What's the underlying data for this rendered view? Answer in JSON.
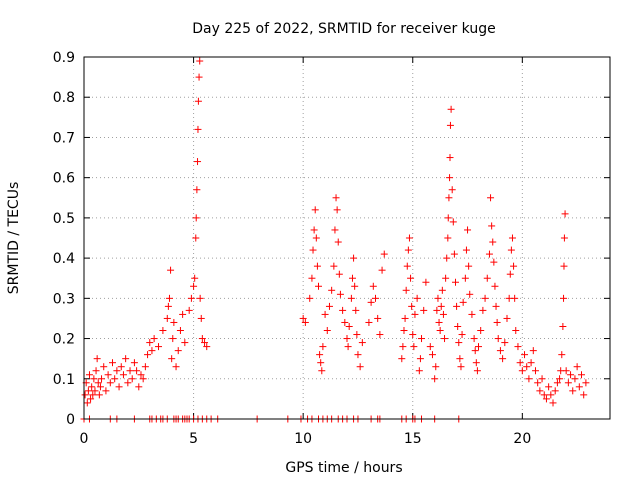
{
  "chart_data": {
    "type": "scatter",
    "title": "Day 225 of 2022, SRMTID for receiver kuge",
    "xlabel": "GPS time / hours",
    "ylabel": "SRMTID / TECUs",
    "xlim": [
      0,
      24
    ],
    "ylim": [
      0,
      0.9
    ],
    "xticks": [
      0,
      5,
      10,
      15,
      20
    ],
    "yticks": [
      0,
      0.1,
      0.2,
      0.3,
      0.4,
      0.5,
      0.6,
      0.7,
      0.8,
      0.9
    ],
    "grid": true,
    "marker": "+",
    "color": "#ff0000",
    "series": [
      {
        "name": "SRMTID",
        "points": [
          [
            0.05,
            0.06
          ],
          [
            0.1,
            0.09
          ],
          [
            0.15,
            0.04
          ],
          [
            0.2,
            0.07
          ],
          [
            0.25,
            0.11
          ],
          [
            0.3,
            0.05
          ],
          [
            0.35,
            0.08
          ],
          [
            0.4,
            0.06
          ],
          [
            0.45,
            0.1
          ],
          [
            0.5,
            0.07
          ],
          [
            0.55,
            0.12
          ],
          [
            0.6,
            0.15
          ],
          [
            0.65,
            0.09
          ],
          [
            0.7,
            0.06
          ],
          [
            0.75,
            0.08
          ],
          [
            0.8,
            0.1
          ],
          [
            0.9,
            0.13
          ],
          [
            1.0,
            0.07
          ],
          [
            1.1,
            0.11
          ],
          [
            1.2,
            0.09
          ],
          [
            1.3,
            0.14
          ],
          [
            1.4,
            0.1
          ],
          [
            1.5,
            0.12
          ],
          [
            1.6,
            0.08
          ],
          [
            1.7,
            0.13
          ],
          [
            1.8,
            0.11
          ],
          [
            1.9,
            0.15
          ],
          [
            2.0,
            0.09
          ],
          [
            2.1,
            0.12
          ],
          [
            2.2,
            0.1
          ],
          [
            2.3,
            0.14
          ],
          [
            2.4,
            0.12
          ],
          [
            2.5,
            0.08
          ],
          [
            2.6,
            0.11
          ],
          [
            2.7,
            0.1
          ],
          [
            2.8,
            0.13
          ],
          [
            2.9,
            0.16
          ],
          [
            3.0,
            0.19
          ],
          [
            3.1,
            0.17
          ],
          [
            3.2,
            0.2
          ],
          [
            3.4,
            0.18
          ],
          [
            3.6,
            0.22
          ],
          [
            3.8,
            0.25
          ],
          [
            3.85,
            0.28
          ],
          [
            3.9,
            0.3
          ],
          [
            3.95,
            0.37
          ],
          [
            4.0,
            0.15
          ],
          [
            4.05,
            0.2
          ],
          [
            4.1,
            0.24
          ],
          [
            4.2,
            0.13
          ],
          [
            4.3,
            0.17
          ],
          [
            4.4,
            0.22
          ],
          [
            4.5,
            0.26
          ],
          [
            4.6,
            0.19
          ],
          [
            4.8,
            0.27
          ],
          [
            4.9,
            0.3
          ],
          [
            5.0,
            0.33
          ],
          [
            5.05,
            0.35
          ],
          [
            5.1,
            0.45
          ],
          [
            5.12,
            0.5
          ],
          [
            5.15,
            0.57
          ],
          [
            5.18,
            0.64
          ],
          [
            5.2,
            0.72
          ],
          [
            5.22,
            0.79
          ],
          [
            5.25,
            0.85
          ],
          [
            5.28,
            0.89
          ],
          [
            5.3,
            0.3
          ],
          [
            5.35,
            0.25
          ],
          [
            5.4,
            0.2
          ],
          [
            5.5,
            0.19
          ],
          [
            5.6,
            0.18
          ],
          [
            10.0,
            0.25
          ],
          [
            10.1,
            0.24
          ],
          [
            10.3,
            0.3
          ],
          [
            10.4,
            0.35
          ],
          [
            10.45,
            0.42
          ],
          [
            10.5,
            0.47
          ],
          [
            10.55,
            0.52
          ],
          [
            10.6,
            0.45
          ],
          [
            10.65,
            0.38
          ],
          [
            10.7,
            0.33
          ],
          [
            10.75,
            0.16
          ],
          [
            10.8,
            0.14
          ],
          [
            10.85,
            0.12
          ],
          [
            10.9,
            0.18
          ],
          [
            11.0,
            0.26
          ],
          [
            11.1,
            0.22
          ],
          [
            11.2,
            0.28
          ],
          [
            11.3,
            0.32
          ],
          [
            11.4,
            0.38
          ],
          [
            11.45,
            0.47
          ],
          [
            11.5,
            0.55
          ],
          [
            11.55,
            0.52
          ],
          [
            11.6,
            0.44
          ],
          [
            11.65,
            0.36
          ],
          [
            11.7,
            0.31
          ],
          [
            11.8,
            0.27
          ],
          [
            11.9,
            0.24
          ],
          [
            12.0,
            0.2
          ],
          [
            12.05,
            0.18
          ],
          [
            12.1,
            0.23
          ],
          [
            12.2,
            0.3
          ],
          [
            12.25,
            0.35
          ],
          [
            12.3,
            0.4
          ],
          [
            12.35,
            0.33
          ],
          [
            12.4,
            0.27
          ],
          [
            12.45,
            0.21
          ],
          [
            12.5,
            0.16
          ],
          [
            12.6,
            0.13
          ],
          [
            12.7,
            0.19
          ],
          [
            13.0,
            0.24
          ],
          [
            13.1,
            0.29
          ],
          [
            13.2,
            0.33
          ],
          [
            13.3,
            0.3
          ],
          [
            13.4,
            0.25
          ],
          [
            13.5,
            0.21
          ],
          [
            13.6,
            0.37
          ],
          [
            13.7,
            0.41
          ],
          [
            14.5,
            0.15
          ],
          [
            14.55,
            0.18
          ],
          [
            14.6,
            0.22
          ],
          [
            14.65,
            0.25
          ],
          [
            14.7,
            0.32
          ],
          [
            14.75,
            0.38
          ],
          [
            14.8,
            0.42
          ],
          [
            14.85,
            0.45
          ],
          [
            14.9,
            0.35
          ],
          [
            14.95,
            0.28
          ],
          [
            15.0,
            0.21
          ],
          [
            15.05,
            0.18
          ],
          [
            15.1,
            0.26
          ],
          [
            15.2,
            0.3
          ],
          [
            15.3,
            0.12
          ],
          [
            15.35,
            0.15
          ],
          [
            15.4,
            0.2
          ],
          [
            15.5,
            0.27
          ],
          [
            15.6,
            0.34
          ],
          [
            15.8,
            0.18
          ],
          [
            15.9,
            0.16
          ],
          [
            16.0,
            0.1
          ],
          [
            16.05,
            0.13
          ],
          [
            16.1,
            0.27
          ],
          [
            16.15,
            0.3
          ],
          [
            16.2,
            0.24
          ],
          [
            16.25,
            0.22
          ],
          [
            16.3,
            0.28
          ],
          [
            16.35,
            0.32
          ],
          [
            16.4,
            0.26
          ],
          [
            16.45,
            0.2
          ],
          [
            16.5,
            0.35
          ],
          [
            16.55,
            0.4
          ],
          [
            16.6,
            0.45
          ],
          [
            16.62,
            0.5
          ],
          [
            16.65,
            0.55
          ],
          [
            16.68,
            0.6
          ],
          [
            16.7,
            0.65
          ],
          [
            16.72,
            0.73
          ],
          [
            16.75,
            0.77
          ],
          [
            16.8,
            0.57
          ],
          [
            16.85,
            0.49
          ],
          [
            16.9,
            0.41
          ],
          [
            16.95,
            0.34
          ],
          [
            17.0,
            0.28
          ],
          [
            17.05,
            0.23
          ],
          [
            17.1,
            0.19
          ],
          [
            17.15,
            0.15
          ],
          [
            17.2,
            0.13
          ],
          [
            17.25,
            0.21
          ],
          [
            17.3,
            0.29
          ],
          [
            17.4,
            0.35
          ],
          [
            17.45,
            0.42
          ],
          [
            17.5,
            0.47
          ],
          [
            17.55,
            0.38
          ],
          [
            17.6,
            0.31
          ],
          [
            17.7,
            0.26
          ],
          [
            17.8,
            0.2
          ],
          [
            17.85,
            0.17
          ],
          [
            17.9,
            0.14
          ],
          [
            17.95,
            0.12
          ],
          [
            18.0,
            0.18
          ],
          [
            18.1,
            0.22
          ],
          [
            18.2,
            0.27
          ],
          [
            18.3,
            0.3
          ],
          [
            18.4,
            0.35
          ],
          [
            18.5,
            0.41
          ],
          [
            18.55,
            0.55
          ],
          [
            18.6,
            0.48
          ],
          [
            18.65,
            0.44
          ],
          [
            18.7,
            0.39
          ],
          [
            18.75,
            0.33
          ],
          [
            18.8,
            0.28
          ],
          [
            18.85,
            0.24
          ],
          [
            18.9,
            0.2
          ],
          [
            19.0,
            0.17
          ],
          [
            19.1,
            0.15
          ],
          [
            19.2,
            0.19
          ],
          [
            19.3,
            0.25
          ],
          [
            19.4,
            0.3
          ],
          [
            19.45,
            0.36
          ],
          [
            19.5,
            0.42
          ],
          [
            19.55,
            0.45
          ],
          [
            19.6,
            0.38
          ],
          [
            19.65,
            0.3
          ],
          [
            19.7,
            0.22
          ],
          [
            19.8,
            0.18
          ],
          [
            19.9,
            0.14
          ],
          [
            20.0,
            0.12
          ],
          [
            20.1,
            0.16
          ],
          [
            20.2,
            0.13
          ],
          [
            20.3,
            0.1
          ],
          [
            20.4,
            0.14
          ],
          [
            20.5,
            0.17
          ],
          [
            20.6,
            0.12
          ],
          [
            20.7,
            0.09
          ],
          [
            20.8,
            0.07
          ],
          [
            20.9,
            0.1
          ],
          [
            21.0,
            0.06
          ],
          [
            21.1,
            0.05
          ],
          [
            21.2,
            0.08
          ],
          [
            21.3,
            0.06
          ],
          [
            21.4,
            0.04
          ],
          [
            21.5,
            0.07
          ],
          [
            21.6,
            0.09
          ],
          [
            21.7,
            0.1
          ],
          [
            21.75,
            0.12
          ],
          [
            21.8,
            0.16
          ],
          [
            21.85,
            0.23
          ],
          [
            21.88,
            0.3
          ],
          [
            21.9,
            0.38
          ],
          [
            21.92,
            0.45
          ],
          [
            21.95,
            0.51
          ],
          [
            22.0,
            0.12
          ],
          [
            22.1,
            0.09
          ],
          [
            22.2,
            0.11
          ],
          [
            22.3,
            0.07
          ],
          [
            22.4,
            0.1
          ],
          [
            22.5,
            0.13
          ],
          [
            22.6,
            0.08
          ],
          [
            22.7,
            0.11
          ],
          [
            22.8,
            0.06
          ],
          [
            22.9,
            0.09
          ],
          [
            0.0,
            0.0
          ],
          [
            0.25,
            0.0
          ],
          [
            1.2,
            0.0
          ],
          [
            1.5,
            0.0
          ],
          [
            2.3,
            0.0
          ],
          [
            3.0,
            0.0
          ],
          [
            3.1,
            0.0
          ],
          [
            3.3,
            0.0
          ],
          [
            3.5,
            0.0
          ],
          [
            3.6,
            0.0
          ],
          [
            3.8,
            0.0
          ],
          [
            4.1,
            0.0
          ],
          [
            4.2,
            0.0
          ],
          [
            4.3,
            0.0
          ],
          [
            4.5,
            0.0
          ],
          [
            4.6,
            0.0
          ],
          [
            4.7,
            0.0
          ],
          [
            4.8,
            0.0
          ],
          [
            5.0,
            0.0
          ],
          [
            5.2,
            0.0
          ],
          [
            5.4,
            0.0
          ],
          [
            5.6,
            0.0
          ],
          [
            5.8,
            0.0
          ],
          [
            6.1,
            0.0
          ],
          [
            7.9,
            0.0
          ],
          [
            9.3,
            0.0
          ],
          [
            9.9,
            0.0
          ],
          [
            10.2,
            0.0
          ],
          [
            10.4,
            0.0
          ],
          [
            10.7,
            0.0
          ],
          [
            10.9,
            0.0
          ],
          [
            11.1,
            0.0
          ],
          [
            11.3,
            0.0
          ],
          [
            11.6,
            0.0
          ],
          [
            11.8,
            0.0
          ],
          [
            12.0,
            0.0
          ],
          [
            12.3,
            0.0
          ],
          [
            12.5,
            0.0
          ],
          [
            13.1,
            0.0
          ],
          [
            13.4,
            0.0
          ],
          [
            13.5,
            0.0
          ],
          [
            14.5,
            0.0
          ],
          [
            14.7,
            0.0
          ],
          [
            15.0,
            0.0
          ],
          [
            15.1,
            0.0
          ],
          [
            15.4,
            0.0
          ],
          [
            16.0,
            0.0
          ],
          [
            17.1,
            0.0
          ]
        ]
      }
    ]
  }
}
